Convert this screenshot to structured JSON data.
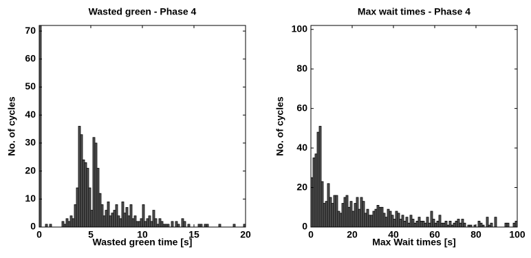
{
  "chart_data": [
    {
      "type": "histogram",
      "title": "Wasted green - Phase 4",
      "xlabel": "Wasted green time [s]",
      "ylabel": "No. of cycles",
      "color": "#555555",
      "bins": [
        0,
        0.2,
        0.4,
        0.6,
        0.8,
        1,
        1.2,
        1.4,
        1.6,
        1.8,
        2,
        2.2,
        2.4,
        2.6,
        2.8,
        3,
        3.2,
        3.4,
        3.6,
        3.8,
        4,
        4.2,
        4.4,
        4.6,
        4.8,
        5,
        5.2,
        5.4,
        5.6,
        5.8,
        6,
        6.2,
        6.4,
        6.6,
        6.8,
        7,
        7.2,
        7.4,
        7.6,
        7.8,
        8,
        8.2,
        8.4,
        8.6,
        8.8,
        9,
        9.2,
        9.4,
        9.6,
        9.8,
        10,
        10.2,
        10.4,
        10.6,
        10.8,
        11,
        11.2,
        11.4,
        11.6,
        11.8,
        12,
        12.2,
        12.4,
        12.6,
        12.8,
        13,
        13.2,
        13.4,
        13.6,
        13.8,
        14,
        14.2,
        14.4,
        14.6,
        14.8,
        15,
        15.2,
        15.4,
        15.6,
        15.8,
        16,
        16.2,
        16.4,
        16.6,
        16.8,
        17,
        17.2,
        17.4,
        17.6,
        17.8,
        18,
        18.2,
        18.4,
        18.6,
        18.8,
        19,
        19.2,
        19.4,
        19.6,
        19.8,
        20
      ],
      "counts": [
        72,
        0,
        0,
        1,
        0,
        1,
        0,
        0,
        0,
        0,
        0,
        2,
        1,
        3,
        2,
        4,
        3,
        8,
        14,
        36,
        33,
        24,
        23,
        21,
        14,
        6,
        32,
        30,
        21,
        12,
        8,
        4,
        6,
        9,
        4,
        5,
        6,
        8,
        4,
        3,
        9,
        5,
        7,
        4,
        8,
        3,
        4,
        2,
        2,
        3,
        8,
        2,
        3,
        4,
        2,
        6,
        3,
        1,
        3,
        2,
        1,
        1,
        1,
        0,
        2,
        0,
        2,
        1,
        0,
        3,
        2,
        0,
        1,
        0,
        0,
        0,
        0,
        1,
        1,
        0,
        1,
        1,
        0,
        0,
        0,
        0,
        0,
        1,
        0,
        0,
        0,
        0,
        0,
        0,
        1,
        0,
        0,
        0,
        0,
        1
      ],
      "xlim": [
        0,
        20
      ],
      "ylim": [
        0,
        72
      ],
      "xticks": [
        0,
        5,
        10,
        15,
        20
      ],
      "yticks": [
        0,
        10,
        20,
        30,
        40,
        50,
        60,
        70
      ]
    },
    {
      "type": "histogram",
      "title": "Max wait times - Phase 4",
      "xlabel": "Max Wait times [s]",
      "ylabel": "No. of cycles",
      "color": "#555555",
      "bins": [
        0,
        1,
        2,
        3,
        4,
        5,
        6,
        7,
        8,
        9,
        10,
        11,
        12,
        13,
        14,
        15,
        16,
        17,
        18,
        19,
        20,
        21,
        22,
        23,
        24,
        25,
        26,
        27,
        28,
        29,
        30,
        31,
        32,
        33,
        34,
        35,
        36,
        37,
        38,
        39,
        40,
        41,
        42,
        43,
        44,
        45,
        46,
        47,
        48,
        49,
        50,
        51,
        52,
        53,
        54,
        55,
        56,
        57,
        58,
        59,
        60,
        61,
        62,
        63,
        64,
        65,
        66,
        67,
        68,
        69,
        70,
        71,
        72,
        73,
        74,
        75,
        76,
        77,
        78,
        79,
        80,
        81,
        82,
        83,
        84,
        85,
        86,
        87,
        88,
        89,
        90,
        91,
        92,
        93,
        94,
        95,
        96,
        97,
        98,
        99,
        100
      ],
      "counts": [
        25,
        35,
        37,
        48,
        51,
        23,
        12,
        13,
        22,
        15,
        12,
        16,
        16,
        8,
        7,
        12,
        15,
        16,
        10,
        13,
        8,
        12,
        15,
        9,
        15,
        13,
        7,
        9,
        6,
        6,
        8,
        9,
        11,
        10,
        10,
        7,
        5,
        9,
        8,
        6,
        4,
        8,
        7,
        4,
        6,
        3,
        5,
        2,
        6,
        4,
        2,
        3,
        5,
        3,
        3,
        2,
        5,
        2,
        8,
        4,
        2,
        3,
        6,
        2,
        2,
        3,
        1,
        3,
        1,
        2,
        3,
        4,
        2,
        4,
        2,
        0,
        1,
        1,
        0,
        1,
        0,
        3,
        2,
        1,
        0,
        5,
        1,
        2,
        0,
        5,
        0,
        0,
        0,
        0,
        2,
        2,
        0,
        0,
        2,
        3
      ],
      "xlim": [
        0,
        100
      ],
      "ylim": [
        0,
        102
      ],
      "xticks": [
        0,
        20,
        40,
        60,
        80,
        100
      ],
      "yticks": [
        0,
        20,
        40,
        60,
        80,
        100
      ]
    }
  ]
}
